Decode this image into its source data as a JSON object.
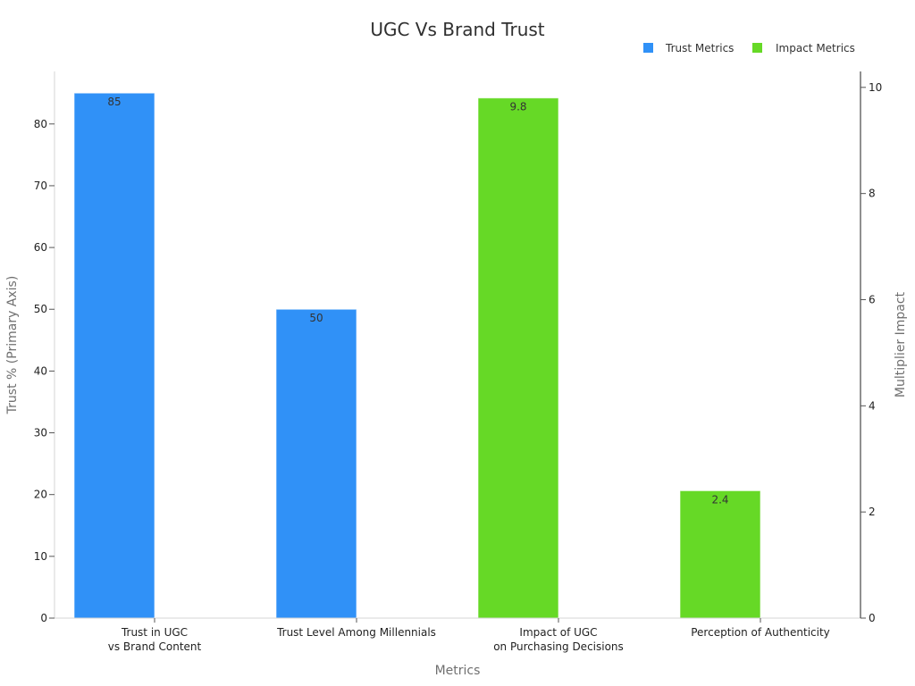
{
  "chart_data": {
    "type": "bar",
    "title": "UGC Vs Brand Trust",
    "xlabel": "Metrics",
    "ylabel": "Trust % (Primary Axis)",
    "y2label": "Multiplier Impact",
    "categories": [
      [
        "Trust in UGC",
        "vs Brand Content"
      ],
      [
        "Trust Level Among Millennials"
      ],
      [
        "Impact of UGC",
        "on Purchasing Decisions"
      ],
      [
        "Perception of Authenticity"
      ]
    ],
    "series": [
      {
        "name": "Trust Metrics",
        "axis": "left",
        "color": "#3091f7",
        "values": [
          85,
          50,
          null,
          null
        ],
        "labels": [
          "85",
          "50",
          "",
          ""
        ]
      },
      {
        "name": "Impact Metrics",
        "axis": "right",
        "color": "#66d926",
        "values": [
          null,
          null,
          9.8,
          2.4
        ],
        "labels": [
          "",
          "",
          "9.8",
          "2.4"
        ]
      }
    ],
    "ylim": [
      0,
      88.5
    ],
    "yticks": [
      0,
      10,
      20,
      30,
      40,
      50,
      60,
      70,
      80
    ],
    "y2lim": [
      0,
      10.3
    ],
    "y2ticks": [
      0,
      2,
      4,
      6,
      8,
      10
    ],
    "legend": "top-right",
    "grid": false
  }
}
